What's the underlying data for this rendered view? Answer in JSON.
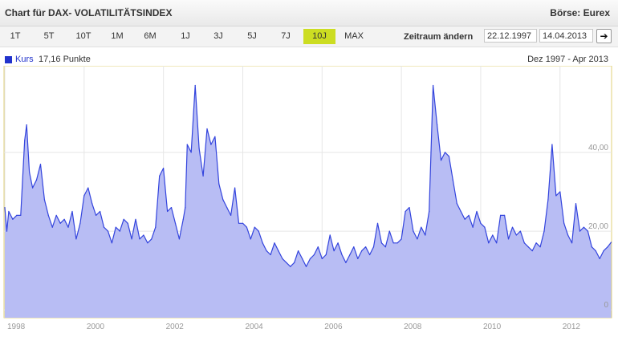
{
  "header": {
    "title": "Chart für DAX- VOLATILITÄTSINDEX",
    "exchange": "Börse: Eurex"
  },
  "range_buttons": [
    "1T",
    "5T",
    "10T",
    "1M",
    "6M",
    "1J",
    "3J",
    "5J",
    "7J",
    "10J",
    "MAX"
  ],
  "active_range": "10J",
  "zeitraum": {
    "label": "Zeitraum ändern",
    "from": "22.12.1997",
    "to": "14.04.2013",
    "go_icon": "arrow-right-icon"
  },
  "legend": {
    "name": "Kurs",
    "value": "17,16 Punkte",
    "period": "Dez 1997 - Apr 2013",
    "color": "#2233cc"
  },
  "colors": {
    "line": "#3344dd",
    "fill": "#b8bdf4",
    "active_button": "#ccdd22"
  },
  "chart_data": {
    "type": "area",
    "series": [
      {
        "name": "Kurs",
        "x": [
          1998.0,
          1998.05,
          1998.1,
          1998.2,
          1998.3,
          1998.4,
          1998.5,
          1998.55,
          1998.62,
          1998.7,
          1998.8,
          1998.9,
          1999.0,
          1999.1,
          1999.2,
          1999.3,
          1999.4,
          1999.5,
          1999.6,
          1999.7,
          1999.8,
          1999.9,
          2000.0,
          2000.1,
          2000.2,
          2000.3,
          2000.4,
          2000.5,
          2000.6,
          2000.7,
          2000.8,
          2000.9,
          2001.0,
          2001.1,
          2001.2,
          2001.3,
          2001.4,
          2001.5,
          2001.6,
          2001.7,
          2001.8,
          2001.9,
          2002.0,
          2002.1,
          2002.2,
          2002.3,
          2002.4,
          2002.5,
          2002.55,
          2002.6,
          2002.7,
          2002.8,
          2002.9,
          2003.0,
          2003.1,
          2003.2,
          2003.3,
          2003.4,
          2003.5,
          2003.6,
          2003.7,
          2003.8,
          2003.9,
          2004.0,
          2004.1,
          2004.2,
          2004.3,
          2004.4,
          2004.5,
          2004.6,
          2004.7,
          2004.8,
          2004.9,
          2005.0,
          2005.1,
          2005.2,
          2005.3,
          2005.4,
          2005.5,
          2005.6,
          2005.7,
          2005.8,
          2005.9,
          2006.0,
          2006.1,
          2006.2,
          2006.3,
          2006.4,
          2006.5,
          2006.6,
          2006.7,
          2006.8,
          2006.9,
          2007.0,
          2007.1,
          2007.2,
          2007.3,
          2007.4,
          2007.5,
          2007.6,
          2007.7,
          2007.8,
          2007.9,
          2008.0,
          2008.1,
          2008.2,
          2008.3,
          2008.4,
          2008.5,
          2008.6,
          2008.7,
          2008.8,
          2008.9,
          2009.0,
          2009.1,
          2009.2,
          2009.3,
          2009.4,
          2009.5,
          2009.6,
          2009.7,
          2009.8,
          2009.9,
          2010.0,
          2010.1,
          2010.2,
          2010.3,
          2010.4,
          2010.5,
          2010.6,
          2010.7,
          2010.8,
          2010.9,
          2011.0,
          2011.1,
          2011.2,
          2011.3,
          2011.4,
          2011.5,
          2011.6,
          2011.7,
          2011.8,
          2011.9,
          2012.0,
          2012.1,
          2012.2,
          2012.3,
          2012.4,
          2012.5,
          2012.6,
          2012.7,
          2012.8,
          2012.9,
          2013.0,
          2013.1,
          2013.2,
          2013.29
        ],
        "values": [
          26,
          20,
          25,
          23,
          24,
          24,
          43,
          47,
          35,
          31,
          33,
          37,
          28,
          24,
          21,
          24,
          22,
          23,
          21,
          25,
          18,
          22,
          29,
          31,
          27,
          24,
          25,
          21,
          20,
          17,
          21,
          20,
          23,
          22,
          18,
          23,
          18,
          19,
          17,
          18,
          21,
          34,
          36,
          25,
          26,
          22,
          18,
          23,
          26,
          42,
          40,
          57,
          41,
          34,
          46,
          42,
          44,
          32,
          28,
          26,
          24,
          31,
          22,
          22,
          21,
          18,
          21,
          20,
          17,
          15,
          14,
          17,
          15,
          13,
          12,
          11,
          12,
          15,
          13,
          11,
          13,
          14,
          16,
          13,
          14,
          19,
          15,
          17,
          14,
          12,
          14,
          16,
          13,
          15,
          16,
          14,
          16,
          22,
          17,
          16,
          20,
          17,
          17,
          18,
          25,
          26,
          20,
          18,
          21,
          19,
          25,
          57,
          47,
          38,
          40,
          39,
          33,
          27,
          25,
          23,
          24,
          21,
          25,
          22,
          21,
          17,
          19,
          17,
          24,
          24,
          18,
          21,
          19,
          20,
          17,
          16,
          15,
          17,
          16,
          20,
          28,
          42,
          29,
          30,
          22,
          19,
          17,
          27,
          20,
          21,
          20,
          16,
          15,
          13,
          15,
          16,
          17.16
        ]
      }
    ],
    "xlim": [
      1997.98,
      2013.3
    ],
    "ylim": [
      -2,
      62
    ],
    "y_ticks": [
      {
        "value": 0,
        "label": "0"
      },
      {
        "value": 20,
        "label": "20,00"
      },
      {
        "value": 40,
        "label": "40,00"
      }
    ],
    "x_ticks": [
      {
        "value": 1998,
        "label": "1998"
      },
      {
        "value": 2000,
        "label": "2000"
      },
      {
        "value": 2002,
        "label": "2002"
      },
      {
        "value": 2004,
        "label": "2004"
      },
      {
        "value": 2006,
        "label": "2006"
      },
      {
        "value": 2008,
        "label": "2008"
      },
      {
        "value": 2010,
        "label": "2010"
      },
      {
        "value": 2012,
        "label": "2012"
      }
    ],
    "grid": true,
    "legend_position": "top-left"
  }
}
